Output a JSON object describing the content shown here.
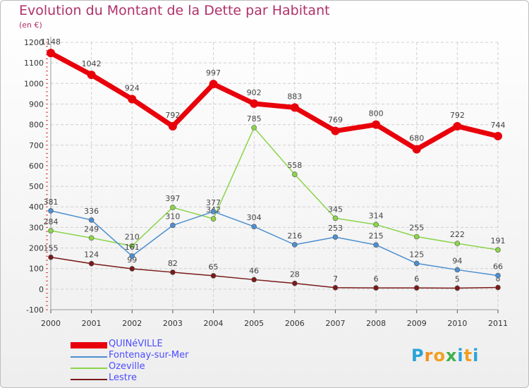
{
  "header": {
    "title": "Evolution du Montant de la Dette par Habitant",
    "subtitle": "(en €)"
  },
  "logo": {
    "text": "Proxiti",
    "letters": [
      "P",
      "r",
      "o",
      "x",
      "i",
      "t",
      "i"
    ]
  },
  "chart_data": {
    "type": "line",
    "x": [
      "2000",
      "2001",
      "2002",
      "2003",
      "2004",
      "2005",
      "2006",
      "2007",
      "2008",
      "2009",
      "2010",
      "2011"
    ],
    "ylim": [
      -100,
      1200
    ],
    "yticks": [
      -100,
      0,
      100,
      200,
      300,
      400,
      500,
      600,
      700,
      800,
      900,
      1000,
      1100,
      1200
    ],
    "grid": true,
    "legend_position": "bottom-left",
    "series": [
      {
        "name": "QUINéVILLE",
        "color": "#e8000b",
        "labels": [
          "1148",
          "1042",
          "924",
          "792",
          "997",
          "902",
          "883",
          "769",
          "800",
          "680",
          "792",
          "744"
        ],
        "values": [
          1148,
          1042,
          924,
          792,
          997,
          902,
          883,
          769,
          800,
          680,
          792,
          744
        ]
      },
      {
        "name": "Fontenay-sur-Mer",
        "color": "#4c8fd0",
        "labels": [
          "381",
          "336",
          "161",
          "310",
          "377",
          "304",
          "216",
          "253",
          "215",
          "125",
          "94",
          "66"
        ],
        "values": [
          381,
          336,
          161,
          310,
          377,
          304,
          216,
          253,
          215,
          125,
          94,
          66
        ]
      },
      {
        "name": "Ozeville",
        "color": "#8ad44a",
        "labels": [
          "284",
          "249",
          "210",
          "397",
          "342",
          "785",
          "558",
          "345",
          "314",
          "255",
          "222",
          "191"
        ],
        "values": [
          284,
          249,
          210,
          397,
          342,
          785,
          558,
          345,
          314,
          255,
          222,
          191
        ]
      },
      {
        "name": "Lestre",
        "color": "#7a1a1a",
        "labels": [
          "155",
          "124",
          "99",
          "82",
          "65",
          "46",
          "28",
          "7",
          "6",
          "6",
          "5",
          "8"
        ],
        "values": [
          155,
          124,
          99,
          82,
          65,
          46,
          28,
          7,
          6,
          6,
          5,
          8
        ]
      }
    ]
  }
}
